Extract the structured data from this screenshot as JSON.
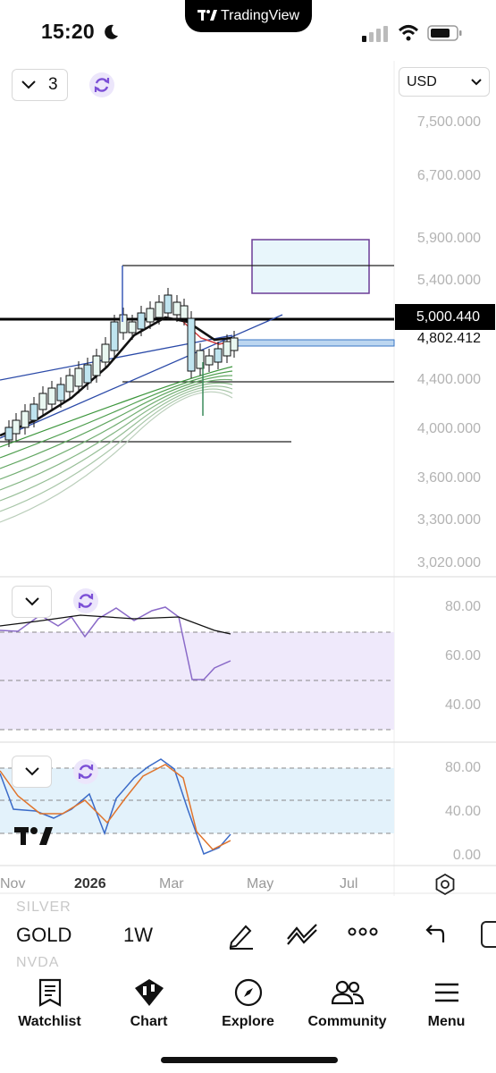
{
  "status_bar": {
    "time": "15:20",
    "center_app": "TradingView"
  },
  "toolbar": {
    "layers_count": "3",
    "currency": "USD",
    "currency_icon": "chevron-down-icon"
  },
  "price_axis": {
    "labels": [
      "7,500.000",
      "6,700.000",
      "5,900.000",
      "5,400.000",
      "4,400.000",
      "4,000.000",
      "3,600.000",
      "3,300.000",
      "3,020.000"
    ],
    "current_price": "5,000.440",
    "last_price": "4,802.412"
  },
  "rsi_axis": {
    "labels": [
      "80.00",
      "60.00",
      "40.00"
    ]
  },
  "stoch_axis": {
    "labels": [
      "80.00",
      "40.00",
      "0.00"
    ]
  },
  "time_axis": {
    "labels": [
      "Nov",
      "2026",
      "Mar",
      "May",
      "Jul"
    ]
  },
  "symbol_bar": {
    "ghost_above": "SILVER",
    "symbol": "GOLD",
    "ghost_below": "NVDA",
    "timeframe": "1W",
    "tool_icons": [
      "drawing-pen-icon",
      "indicators-icon",
      "more-dots-icon",
      "undo-icon",
      "redo-icon"
    ]
  },
  "nav": {
    "items": [
      {
        "label": "Watchlist",
        "icon": "watchlist-icon"
      },
      {
        "label": "Chart",
        "icon": "chart-icon"
      },
      {
        "label": "Explore",
        "icon": "compass-icon"
      },
      {
        "label": "Community",
        "icon": "community-icon"
      },
      {
        "label": "Menu",
        "icon": "menu-icon"
      }
    ]
  },
  "colors": {
    "accent_purple": "#7b4fd6",
    "rsi_band": "#efe9fb",
    "stoch_band": "#e3f2fb",
    "ribbon_green": "#3c9a3c",
    "trend_blue": "#2b4aa8"
  },
  "chart_data": [
    {
      "type": "line",
      "title": "",
      "series": [],
      "y_axis_ticks": [
        7500,
        6700,
        5900,
        5400,
        4400,
        4000,
        3600,
        3300,
        3020
      ],
      "ylim": [
        3020,
        7500
      ],
      "x_ticks": [
        "Nov",
        "2026",
        "Mar",
        "May",
        "Jul"
      ],
      "markers": {
        "current": 5000.44,
        "last": 4802.412
      },
      "grid": false
    },
    {
      "type": "line",
      "title": "",
      "series": [],
      "ylim": [
        20,
        90
      ],
      "y_axis_ticks": [
        80,
        60,
        40
      ]
    },
    {
      "type": "line",
      "title": "",
      "series": [],
      "ylim": [
        0,
        100
      ],
      "y_axis_ticks": [
        80,
        40,
        0
      ]
    }
  ]
}
